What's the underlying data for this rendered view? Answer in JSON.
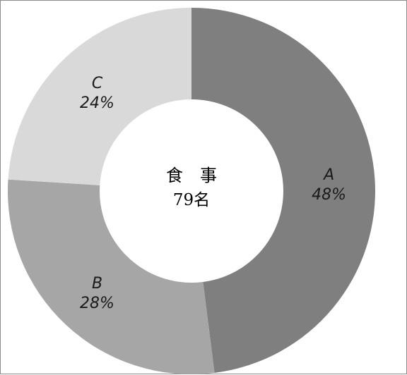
{
  "chart_data": {
    "type": "pie",
    "variant": "donut",
    "categories": [
      "A",
      "B",
      "C"
    ],
    "values": [
      48,
      28,
      24
    ],
    "value_labels": [
      "48%",
      "28%",
      "24%"
    ],
    "colors": [
      "#7f7f7f",
      "#a6a6a6",
      "#d9d9d9"
    ],
    "center": {
      "title": "食　事",
      "count": "79名"
    },
    "legend": "none",
    "grid": false
  }
}
